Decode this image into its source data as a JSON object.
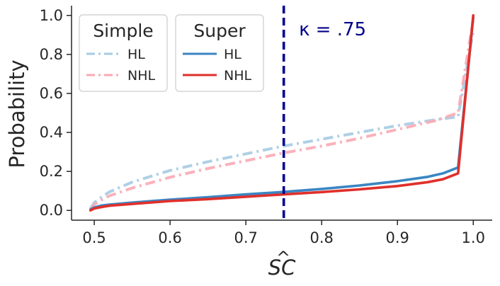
{
  "chart_data": {
    "type": "line",
    "xlabel": "$\\hat{SC}$",
    "xlabel_main": "SC",
    "xlabel_hat": "^",
    "ylabel": "Probability",
    "xlim": [
      0.47,
      1.025
    ],
    "ylim": [
      -0.05,
      1.05
    ],
    "xticks": [
      0.5,
      0.6,
      0.7,
      0.8,
      0.9,
      1.0
    ],
    "xtick_labels": [
      "0.5",
      "0.6",
      "0.7",
      "0.8",
      "0.9",
      "1.0"
    ],
    "yticks": [
      0.0,
      0.2,
      0.4,
      0.6,
      0.8,
      1.0
    ],
    "ytick_labels": [
      "0.0",
      "0.2",
      "0.4",
      "0.6",
      "0.8",
      "1.0"
    ],
    "grid": false,
    "vline": {
      "x": 0.75,
      "color": "#00008b",
      "style": "dashed"
    },
    "annotation": {
      "text": "κ = .75",
      "color": "#00008b",
      "x": 0.77,
      "y": 0.93
    },
    "legends": [
      {
        "title": "Simple",
        "placement": "top-left",
        "entries": [
          "HL",
          "NHL"
        ]
      },
      {
        "title": "Super",
        "placement": "top-left",
        "entries": [
          "HL",
          "NHL"
        ]
      }
    ],
    "series": [
      {
        "name": "HL",
        "group": "Simple",
        "color": "#a6cbe3",
        "style": "dashdot",
        "x": [
          0.495,
          0.5,
          0.51,
          0.52,
          0.55,
          0.6,
          0.65,
          0.7,
          0.75,
          0.8,
          0.85,
          0.9,
          0.95,
          0.98,
          1.0
        ],
        "y": [
          0.01,
          0.04,
          0.07,
          0.095,
          0.145,
          0.205,
          0.25,
          0.29,
          0.33,
          0.365,
          0.4,
          0.435,
          0.465,
          0.48,
          0.92
        ]
      },
      {
        "name": "NHL",
        "group": "Simple",
        "color": "#f9a9b4",
        "style": "dashdot",
        "x": [
          0.495,
          0.5,
          0.51,
          0.52,
          0.55,
          0.6,
          0.65,
          0.7,
          0.75,
          0.8,
          0.85,
          0.9,
          0.95,
          0.98,
          1.0
        ],
        "y": [
          0.005,
          0.03,
          0.055,
          0.075,
          0.115,
          0.17,
          0.215,
          0.255,
          0.295,
          0.33,
          0.37,
          0.415,
          0.46,
          0.5,
          0.98
        ]
      },
      {
        "name": "HL",
        "group": "Super",
        "color": "#3a86c3",
        "style": "solid",
        "x": [
          0.495,
          0.5,
          0.51,
          0.52,
          0.55,
          0.6,
          0.65,
          0.7,
          0.75,
          0.8,
          0.85,
          0.9,
          0.94,
          0.96,
          0.98,
          1.0
        ],
        "y": [
          0.005,
          0.015,
          0.025,
          0.03,
          0.04,
          0.055,
          0.068,
          0.082,
          0.095,
          0.11,
          0.128,
          0.15,
          0.172,
          0.19,
          0.22,
          0.99
        ]
      },
      {
        "name": "NHL",
        "group": "Super",
        "color": "#e0302b",
        "style": "solid",
        "x": [
          0.495,
          0.5,
          0.51,
          0.52,
          0.55,
          0.6,
          0.65,
          0.7,
          0.75,
          0.8,
          0.85,
          0.9,
          0.94,
          0.96,
          0.98,
          1.0
        ],
        "y": [
          0.0,
          0.01,
          0.018,
          0.024,
          0.033,
          0.048,
          0.058,
          0.07,
          0.082,
          0.094,
          0.108,
          0.125,
          0.145,
          0.16,
          0.19,
          1.0
        ]
      }
    ]
  }
}
